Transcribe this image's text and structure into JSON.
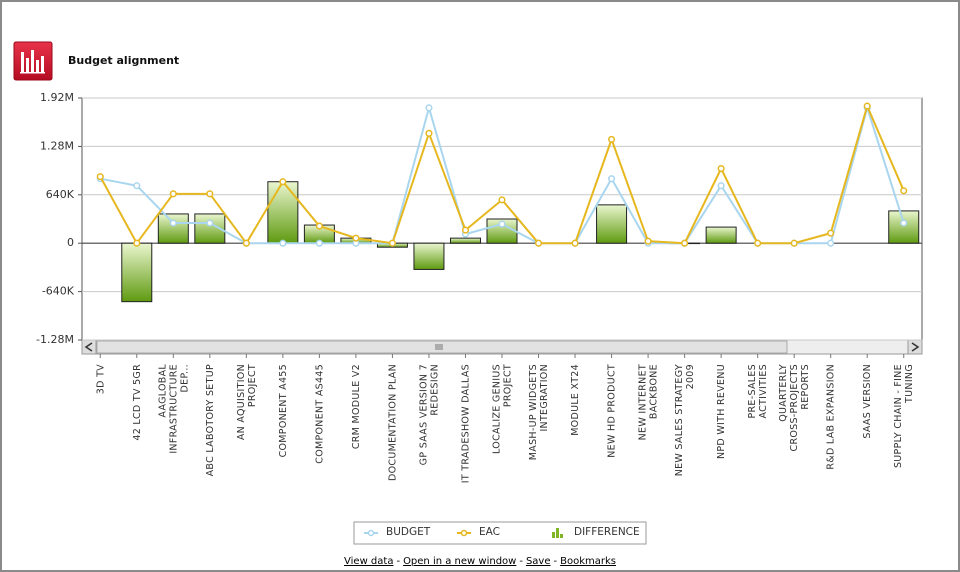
{
  "header": {
    "title": "Budget alignment"
  },
  "chart_data": {
    "type": "combo",
    "categories": [
      "3D TV",
      "42 LCD TV 5GR",
      "AAGLOBAL INFRASTRUCTURE DEP...",
      "ABC LABOTORY SETUP",
      "AN AQUISITION PROJECT",
      "COMPONENT A455",
      "COMPONENT AS445",
      "CRM MODULE V2",
      "DOCUMENTATION PLAN",
      "GP SAAS VERSION 7 REDESIGN",
      "IT TRADESHOW DALLAS",
      "LOCALIZE GENIUS PROJECT",
      "MASH-UP WIDGETS INTEGRATION",
      "MODULE XT24",
      "NEW HD PRODUCT",
      "NEW INTERNET BACKBONE",
      "NEW SALES STRATEGY 2009",
      "NPD WITH REVENU",
      "PRE-SALES ACTIVITIES",
      "QUARTERLY CROSS-PROJECTS REPORTS",
      "R&D LAB EXPANSION",
      "SAAS VERSION",
      "SUPPLY CHAIN - FINE TUNING"
    ],
    "series": [
      {
        "name": "BUDGET",
        "type": "line",
        "color": "#a9d6ee",
        "values": [
          853000,
          760000,
          267000,
          267000,
          0,
          0,
          0,
          0,
          0,
          1790000,
          120000,
          253000,
          0,
          0,
          853000,
          0,
          0,
          760000,
          0,
          0,
          0,
          1790000,
          267000
        ]
      },
      {
        "name": "EAC",
        "type": "line",
        "color": "#e6b71e",
        "values": [
          880000,
          0,
          653000,
          653000,
          0,
          813000,
          227000,
          67000,
          0,
          1453000,
          173000,
          573000,
          0,
          0,
          1373000,
          27000,
          0,
          987000,
          0,
          0,
          133000,
          1813000,
          693000
        ]
      },
      {
        "name": "DIFFERENCE",
        "type": "bar",
        "color": "#7fb527",
        "values": [
          0,
          -773000,
          387000,
          387000,
          0,
          813000,
          240000,
          67000,
          -53000,
          -347000,
          67000,
          320000,
          0,
          0,
          507000,
          0,
          -5000,
          213000,
          0,
          0,
          0,
          0,
          427000
        ]
      }
    ],
    "ylim": [
      -1280000,
      1920000
    ],
    "yticks": [
      {
        "value": -1280000,
        "label": "-1.28M"
      },
      {
        "value": -640000,
        "label": "-640K"
      },
      0,
      {
        "value": 640000,
        "label": "640K"
      },
      {
        "value": 1280000,
        "label": "1.28M"
      },
      {
        "value": 1920000,
        "label": "1.92M"
      }
    ],
    "grid": true
  },
  "footer": {
    "links": [
      "View data",
      "Open in a new window",
      "Save",
      "Bookmarks"
    ],
    "separator": "-"
  }
}
